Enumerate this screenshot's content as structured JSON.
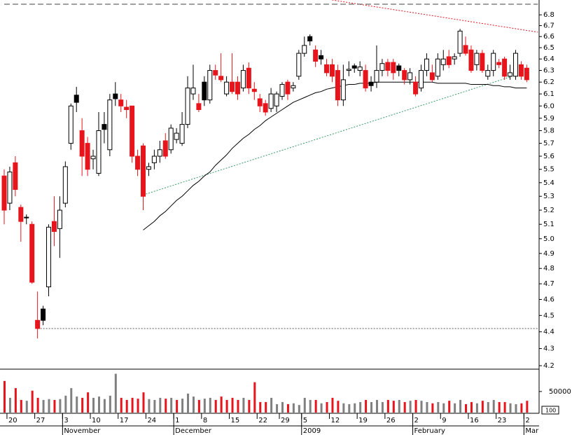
{
  "chart_data": {
    "type": "candlestick",
    "log_scale": true,
    "ylim": [
      4.18,
      6.94
    ],
    "yticks": [
      4.2,
      4.3,
      4.4,
      4.5,
      4.6,
      4.7,
      4.8,
      4.9,
      {
        "value": 5,
        "label": "5.0"
      },
      5.1,
      5.2,
      5.3,
      5.4,
      5.5,
      5.6,
      5.7,
      5.8,
      5.9,
      {
        "value": 6,
        "label": "6.0"
      },
      6.1,
      6.2,
      6.3,
      6.4,
      6.5,
      6.6,
      6.7,
      6.8
    ],
    "categories": [
      null,
      "20",
      null,
      null,
      null,
      null,
      "27",
      null,
      null,
      null,
      null,
      "3",
      null,
      null,
      null,
      null,
      "10",
      null,
      null,
      null,
      null,
      "17",
      null,
      null,
      null,
      null,
      "24",
      null,
      null,
      null,
      null,
      "1",
      null,
      null,
      null,
      null,
      "8",
      null,
      null,
      null,
      null,
      "15",
      null,
      null,
      null,
      null,
      "22",
      null,
      null,
      null,
      "29",
      null,
      null,
      null,
      "5",
      null,
      null,
      null,
      null,
      "12",
      null,
      null,
      null,
      null,
      "19",
      null,
      null,
      null,
      null,
      "26",
      null,
      null,
      null,
      null,
      "2",
      null,
      null,
      null,
      null,
      "9",
      null,
      null,
      null,
      null,
      "16",
      null,
      null,
      null,
      null,
      "23",
      null,
      null,
      null,
      null,
      "2"
    ],
    "month_labels": [
      null,
      null,
      null,
      null,
      null,
      null,
      null,
      null,
      null,
      null,
      null,
      "November",
      null,
      null,
      null,
      null,
      null,
      null,
      null,
      null,
      null,
      null,
      null,
      null,
      null,
      null,
      null,
      null,
      null,
      null,
      null,
      "December",
      null,
      null,
      null,
      null,
      null,
      null,
      null,
      null,
      null,
      null,
      null,
      null,
      null,
      null,
      null,
      null,
      null,
      null,
      null,
      null,
      null,
      null,
      "2009",
      null,
      null,
      null,
      null,
      null,
      null,
      null,
      null,
      null,
      null,
      null,
      null,
      null,
      null,
      null,
      null,
      null,
      null,
      null,
      "February",
      null,
      null,
      null,
      null,
      null,
      null,
      null,
      null,
      null,
      null,
      null,
      null,
      null,
      null,
      null,
      null,
      null,
      null,
      null,
      "Mar"
    ],
    "open": [
      5.45,
      5.25,
      5.55,
      5.22,
      5.15,
      5.1,
      4.47,
      4.54,
      4.68,
      5.12,
      5.07,
      5.25,
      5.7,
      6.09,
      5.8,
      5.7,
      5.58,
      5.47,
      5.85,
      5.65,
      6.1,
      6.05,
      5.99,
      6.0,
      5.6,
      5.68,
      5.5,
      5.55,
      5.6,
      5.72,
      5.65,
      5.73,
      5.7,
      5.85,
      6.1,
      6.02,
      6.2,
      6.05,
      6.3,
      6.25,
      6.1,
      6.2,
      6.2,
      6.15,
      6.32,
      6.14,
      6.06,
      6.02,
      5.98,
      6.0,
      6.08,
      6.2,
      6.15,
      6.25,
      6.45,
      6.6,
      6.48,
      6.43,
      6.35,
      6.35,
      6.3,
      6.05,
      6.3,
      6.34,
      6.3,
      6.3,
      6.2,
      6.2,
      6.3,
      6.37,
      6.37,
      6.34,
      6.3,
      6.22,
      6.2,
      6.15,
      6.3,
      6.28,
      6.25,
      6.35,
      6.42,
      6.4,
      6.45,
      6.52,
      6.48,
      6.35,
      6.45,
      6.25,
      6.3,
      6.37,
      6.4,
      6.25,
      6.25,
      6.35,
      6.32
    ],
    "high": [
      5.5,
      5.52,
      5.6,
      5.24,
      5.17,
      5.12,
      4.65,
      4.56,
      5.1,
      5.3,
      5.3,
      5.56,
      6.02,
      6.16,
      5.9,
      5.75,
      5.65,
      5.95,
      5.95,
      6.1,
      6.2,
      6.1,
      6.05,
      6.0,
      5.65,
      5.7,
      5.55,
      5.65,
      5.72,
      5.78,
      5.85,
      5.82,
      5.95,
      6.25,
      6.35,
      6.1,
      6.25,
      6.35,
      6.35,
      6.45,
      6.25,
      6.45,
      6.25,
      6.35,
      6.37,
      6.2,
      6.1,
      6.05,
      6.15,
      6.12,
      6.2,
      6.22,
      6.2,
      6.48,
      6.6,
      6.62,
      6.52,
      6.48,
      6.4,
      6.4,
      6.35,
      6.35,
      6.38,
      6.36,
      6.38,
      6.35,
      6.25,
      6.52,
      6.4,
      6.4,
      6.4,
      6.36,
      6.32,
      6.32,
      6.25,
      6.35,
      6.45,
      6.35,
      6.45,
      6.48,
      6.48,
      6.45,
      6.67,
      6.6,
      6.52,
      6.48,
      6.48,
      6.35,
      6.48,
      6.4,
      6.42,
      6.35,
      6.48,
      6.38,
      6.35
    ],
    "low": [
      5.1,
      5.2,
      5.3,
      4.98,
      5.1,
      4.7,
      4.36,
      4.44,
      4.62,
      4.95,
      4.87,
      5.22,
      5.65,
      5.95,
      5.45,
      5.45,
      5.5,
      5.45,
      5.7,
      5.6,
      6.0,
      5.95,
      5.9,
      5.55,
      5.45,
      5.2,
      5.45,
      5.5,
      5.55,
      5.58,
      5.62,
      5.7,
      5.68,
      5.82,
      6.05,
      5.95,
      6.0,
      6.02,
      6.22,
      6.2,
      6.08,
      6.1,
      6.05,
      6.12,
      6.1,
      6.05,
      5.95,
      5.92,
      5.95,
      5.95,
      6.05,
      6.05,
      6.12,
      6.22,
      6.42,
      6.52,
      6.33,
      6.35,
      6.25,
      6.2,
      6.0,
      6.0,
      6.25,
      6.28,
      6.25,
      6.12,
      6.12,
      6.15,
      6.25,
      6.25,
      6.22,
      6.25,
      6.18,
      6.18,
      6.08,
      6.12,
      6.25,
      6.2,
      6.22,
      6.3,
      6.32,
      6.35,
      6.42,
      6.43,
      6.28,
      6.3,
      6.28,
      6.22,
      6.25,
      6.32,
      6.22,
      6.22,
      6.22,
      6.22,
      6.2
    ],
    "close": [
      5.2,
      5.48,
      5.35,
      5.12,
      5.15,
      4.71,
      4.42,
      4.47,
      5.08,
      5.05,
      5.2,
      5.52,
      6.0,
      6.03,
      5.6,
      5.5,
      5.6,
      5.8,
      5.81,
      6.05,
      6.06,
      6.0,
      5.97,
      5.6,
      5.5,
      5.3,
      5.52,
      5.6,
      5.65,
      5.6,
      5.82,
      5.78,
      5.85,
      6.15,
      6.15,
      5.97,
      6.05,
      6.3,
      6.26,
      6.22,
      6.2,
      6.12,
      6.1,
      6.3,
      6.15,
      6.12,
      6.0,
      5.95,
      6.1,
      6.1,
      6.18,
      6.1,
      6.17,
      6.45,
      6.52,
      6.56,
      6.38,
      6.4,
      6.28,
      6.25,
      6.05,
      6.22,
      6.31,
      6.32,
      6.33,
      6.15,
      6.17,
      6.3,
      6.36,
      6.3,
      6.28,
      6.3,
      6.22,
      6.28,
      6.1,
      6.3,
      6.4,
      6.22,
      6.4,
      6.4,
      6.35,
      6.42,
      6.65,
      6.45,
      6.3,
      6.45,
      6.3,
      6.3,
      6.45,
      6.35,
      6.25,
      6.28,
      6.45,
      6.25,
      6.22
    ],
    "up_color": "#ffffff",
    "down_color": "#e8141c",
    "down_above_prev_color": "#000000",
    "overlay": {
      "color": "#000000",
      "values": [
        null,
        null,
        null,
        null,
        null,
        null,
        null,
        null,
        null,
        null,
        null,
        null,
        null,
        null,
        null,
        null,
        null,
        null,
        null,
        null,
        null,
        null,
        null,
        null,
        null,
        5.06,
        5.09,
        5.12,
        5.16,
        5.19,
        5.23,
        5.27,
        5.3,
        5.34,
        5.38,
        5.41,
        5.45,
        5.48,
        5.53,
        5.57,
        5.61,
        5.66,
        5.7,
        5.74,
        5.77,
        5.81,
        5.84,
        5.88,
        5.91,
        5.94,
        5.97,
        6.0,
        6.03,
        6.05,
        6.07,
        6.09,
        6.11,
        6.12,
        6.14,
        6.15,
        6.16,
        6.17,
        6.18,
        6.18,
        6.19,
        6.19,
        6.19,
        6.2,
        6.2,
        6.2,
        6.2,
        6.2,
        6.2,
        6.2,
        6.2,
        6.2,
        6.2,
        6.2,
        6.19,
        6.19,
        6.19,
        6.19,
        6.19,
        6.19,
        6.18,
        6.18,
        6.18,
        6.18,
        6.17,
        6.17,
        6.16,
        6.16,
        6.15,
        6.15,
        6.15
      ]
    },
    "lines": [
      {
        "start": [
          25,
          5.31
        ],
        "end": [
          94,
          6.29
        ],
        "color": "#3a9a6a",
        "style": "dotted"
      },
      {
        "start": [
          59,
          6.94
        ],
        "end": [
          96,
          6.64
        ],
        "color": "#e0141c",
        "style": "dotted"
      },
      {
        "start": [
          6,
          4.42
        ],
        "end": [
          96,
          4.42
        ],
        "color": "#555555",
        "style": "dotted"
      },
      {
        "start": [
          0,
          6.9
        ],
        "end": [
          96,
          6.9
        ],
        "color": "#444444",
        "style": "dashed"
      }
    ],
    "volume": {
      "values": [
        75000,
        35000,
        58000,
        30000,
        28000,
        52000,
        35000,
        30000,
        32000,
        30000,
        32000,
        40000,
        58000,
        38000,
        35000,
        48000,
        35000,
        38000,
        32000,
        40000,
        92000,
        35000,
        30000,
        35000,
        33000,
        48000,
        32000,
        30000,
        35000,
        33000,
        35000,
        30000,
        33000,
        45000,
        38000,
        30000,
        33000,
        35000,
        30000,
        38000,
        30000,
        35000,
        30000,
        35000,
        30000,
        72000,
        25000,
        25000,
        35000,
        20000,
        25000,
        20000,
        22000,
        18000,
        35000,
        30000,
        30000,
        22000,
        25000,
        35000,
        28000,
        22000,
        20000,
        22000,
        25000,
        30000,
        25000,
        30000,
        25000,
        30000,
        28000,
        30000,
        25000,
        28000,
        30000,
        28000,
        25000,
        22000,
        25000,
        22000,
        28000,
        22000,
        30000,
        20000,
        25000,
        22000,
        28000,
        25000,
        30000,
        25000,
        25000,
        22000,
        20000,
        22000,
        28000
      ],
      "ylim": [
        0,
        98000
      ],
      "yticks": [
        50000
      ],
      "up_color": "#808080",
      "down_color": "#e8141c",
      "unit_label": "100"
    }
  }
}
